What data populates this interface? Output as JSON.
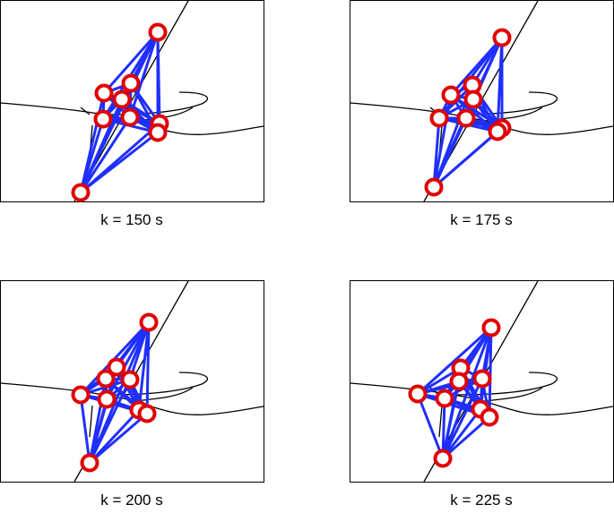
{
  "panels": [
    {
      "caption": "k = 150 s"
    },
    {
      "caption": "k = 175 s"
    },
    {
      "caption": "k = 200 s"
    },
    {
      "caption": "k = 225 s"
    }
  ]
}
